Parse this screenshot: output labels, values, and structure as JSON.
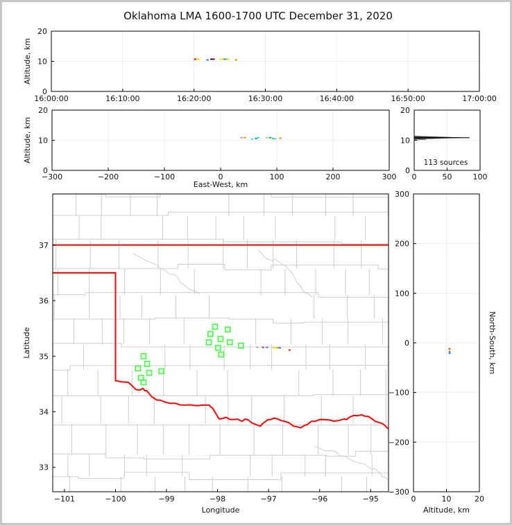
{
  "window": {
    "title": "Oklahoma LMA 1600-1700 UTC December 31, 2020"
  },
  "colors": {
    "background": "#ffffff",
    "frame": "#c6c6c6",
    "axis": "#000000",
    "text": "#111111",
    "grid": "#ececec",
    "county": "#cccccc",
    "state_border": "#ff0000",
    "station": "#3eff3e",
    "histogram": "#222222"
  },
  "chart_data": [
    {
      "id": "time_height",
      "type": "scatter",
      "title": "Oklahoma LMA 1600-1700 UTC December 31, 2020",
      "xlabel": "",
      "ylabel": "Altitude, km",
      "xlim_minutes": [
        0,
        60
      ],
      "ylim": [
        0,
        20
      ],
      "xtick_minutes": [
        0,
        10,
        20,
        30,
        40,
        50,
        60
      ],
      "xtick_labels": [
        "16:00:00",
        "16:10:00",
        "16:20:00",
        "16:30:00",
        "16:40:00",
        "16:50:00",
        "17:00:00"
      ],
      "yticks": [
        0,
        10,
        20
      ],
      "points": [
        {
          "x": 20.15,
          "y": 10.7,
          "c": "#e60000"
        },
        {
          "x": 20.5,
          "y": 10.7,
          "c": "#ffdf00"
        },
        {
          "x": 20.7,
          "y": 10.7,
          "c": "#ffdf00"
        },
        {
          "x": 21.9,
          "y": 10.45,
          "c": "#2b7bde"
        },
        {
          "x": 22.45,
          "y": 10.7,
          "c": "#141414"
        },
        {
          "x": 22.75,
          "y": 10.7,
          "c": "#a00000"
        },
        {
          "x": 23.75,
          "y": 10.7,
          "c": "#ffdf00"
        },
        {
          "x": 24.05,
          "y": 10.7,
          "c": "#ffdf00"
        },
        {
          "x": 24.3,
          "y": 10.7,
          "c": "#2b7bde"
        },
        {
          "x": 24.55,
          "y": 10.7,
          "c": "#57d43c"
        },
        {
          "x": 24.8,
          "y": 10.7,
          "c": "#ffdf00"
        },
        {
          "x": 25.9,
          "y": 10.45,
          "c": "#ff8c00"
        }
      ]
    },
    {
      "id": "ew_height",
      "type": "scatter",
      "xlabel": "East-West, km",
      "ylabel": "Altitude, km",
      "xlim": [
        -300,
        300
      ],
      "ylim": [
        0,
        20
      ],
      "xticks": [
        -300,
        -200,
        -100,
        0,
        100,
        200,
        300
      ],
      "yticks": [
        0,
        10,
        20
      ],
      "points": [
        {
          "x": 37,
          "y": 10.85,
          "c": "#a0a0a0"
        },
        {
          "x": 43,
          "y": 10.85,
          "c": "#ff8c00"
        },
        {
          "x": 56,
          "y": 10.4,
          "c": "#35dfe0"
        },
        {
          "x": 63,
          "y": 10.6,
          "c": "#13a393"
        },
        {
          "x": 67,
          "y": 10.85,
          "c": "#35dfe0"
        },
        {
          "x": 82,
          "y": 10.85,
          "c": "#d9c47e"
        },
        {
          "x": 88,
          "y": 10.85,
          "c": "#13a393"
        },
        {
          "x": 93,
          "y": 10.6,
          "c": "#49c94d"
        },
        {
          "x": 97,
          "y": 10.5,
          "c": "#35dfe0"
        },
        {
          "x": 106,
          "y": 10.7,
          "c": "#ff8c00"
        }
      ]
    },
    {
      "id": "alt_histogram",
      "type": "line",
      "annotation": "113 sources",
      "xlabel": "",
      "ylabel": "",
      "xlim": [
        0,
        100
      ],
      "ylim": [
        0,
        20
      ],
      "xticks": [
        0,
        50,
        100
      ],
      "yticks": [
        0,
        10,
        20
      ],
      "profile": [
        {
          "alt": 10.3,
          "n": 0
        },
        {
          "alt": 10.85,
          "n": 84
        },
        {
          "alt": 11.45,
          "n": 0
        }
      ]
    },
    {
      "id": "map",
      "type": "scatter",
      "xlabel": "Longitude",
      "ylabel": "Latitude",
      "xlim": [
        -101.23,
        -94.65
      ],
      "ylim": [
        32.56,
        37.92
      ],
      "xticks": [
        -101,
        -100,
        -99,
        -98,
        -97,
        -96,
        -95
      ],
      "yticks": [
        33,
        34,
        35,
        36,
        37
      ],
      "stations": [
        [
          -98.05,
          35.53
        ],
        [
          -97.8,
          35.48
        ],
        [
          -98.14,
          35.4
        ],
        [
          -97.94,
          35.31
        ],
        [
          -98.17,
          35.25
        ],
        [
          -97.76,
          35.25
        ],
        [
          -97.99,
          35.15
        ],
        [
          -97.54,
          35.19
        ],
        [
          -97.93,
          35.03
        ],
        [
          -99.45,
          35.0
        ],
        [
          -99.38,
          34.86
        ],
        [
          -99.56,
          34.78
        ],
        [
          -99.34,
          34.7
        ],
        [
          -99.1,
          34.73
        ],
        [
          -99.5,
          34.61
        ],
        [
          -99.45,
          34.53
        ]
      ],
      "points": [
        {
          "x": -97.22,
          "y": 35.16,
          "c": "#a0a0a0"
        },
        {
          "x": -97.11,
          "y": 35.16,
          "c": "#e62222"
        },
        {
          "x": -97.03,
          "y": 35.16,
          "c": "#2b7bde"
        },
        {
          "x": -96.9,
          "y": 35.15,
          "c": "#ffdf00"
        },
        {
          "x": -96.86,
          "y": 35.15,
          "c": "#ffdf00"
        },
        {
          "x": -96.82,
          "y": 35.15,
          "c": "#b8b400"
        },
        {
          "x": -96.78,
          "y": 35.15,
          "c": "#2b7bde"
        },
        {
          "x": -96.59,
          "y": 35.11,
          "c": "#e62222"
        }
      ],
      "state_border": {
        "north_lat": 37.0,
        "panhandle_lat": 36.5,
        "west_lon": -100.0,
        "red_river": [
          [
            -99.99,
            34.56
          ],
          [
            -99.75,
            34.53
          ],
          [
            -99.6,
            34.4
          ],
          [
            -99.46,
            34.42
          ],
          [
            -99.39,
            34.38
          ],
          [
            -99.19,
            34.21
          ],
          [
            -99.05,
            34.18
          ],
          [
            -98.82,
            34.15
          ],
          [
            -98.65,
            34.12
          ],
          [
            -98.41,
            34.11
          ],
          [
            -98.16,
            34.12
          ],
          [
            -98.1,
            34.07
          ],
          [
            -97.97,
            33.87
          ],
          [
            -97.83,
            33.9
          ],
          [
            -97.69,
            33.86
          ],
          [
            -97.53,
            33.83
          ],
          [
            -97.46,
            33.87
          ],
          [
            -97.33,
            33.8
          ],
          [
            -97.16,
            33.74
          ],
          [
            -97.08,
            33.81
          ],
          [
            -96.96,
            33.86
          ],
          [
            -96.82,
            33.87
          ],
          [
            -96.69,
            33.83
          ],
          [
            -96.51,
            33.74
          ],
          [
            -96.37,
            33.71
          ],
          [
            -96.24,
            33.77
          ],
          [
            -96.08,
            33.83
          ],
          [
            -95.9,
            33.86
          ],
          [
            -95.72,
            33.83
          ],
          [
            -95.52,
            33.87
          ],
          [
            -95.42,
            33.9
          ],
          [
            -95.25,
            33.93
          ],
          [
            -95.11,
            33.92
          ],
          [
            -94.97,
            33.87
          ],
          [
            -94.85,
            33.81
          ],
          [
            -94.74,
            33.77
          ],
          [
            -94.63,
            33.67
          ]
        ]
      },
      "rivers": [
        [
          [
            -99.65,
            36.85
          ],
          [
            -99.4,
            36.72
          ],
          [
            -99.1,
            36.58
          ],
          [
            -98.85,
            36.47
          ],
          [
            -98.65,
            36.28
          ],
          [
            -98.35,
            36.12
          ]
        ],
        [
          [
            -97.2,
            36.9
          ],
          [
            -97.0,
            36.75
          ],
          [
            -96.8,
            36.7
          ],
          [
            -96.6,
            36.55
          ],
          [
            -96.45,
            36.35
          ],
          [
            -96.33,
            36.18
          ],
          [
            -96.15,
            36.06
          ]
        ],
        [
          [
            -96.1,
            33.38
          ],
          [
            -95.8,
            33.3
          ],
          [
            -95.5,
            33.2
          ],
          [
            -95.1,
            33.05
          ],
          [
            -94.82,
            32.9
          ],
          [
            -94.66,
            32.78
          ]
        ]
      ]
    },
    {
      "id": "ns_height",
      "type": "scatter",
      "xlabel": "Altitude, km",
      "ylabel": "North-South, km",
      "xlim": [
        0,
        20
      ],
      "ylim": [
        -300,
        300
      ],
      "xticks": [
        0,
        10,
        20
      ],
      "yticks": [
        300,
        200,
        100,
        0,
        -100,
        -200,
        -300
      ],
      "points": [
        {
          "x": 10.9,
          "y": -12,
          "c": "#e62222"
        },
        {
          "x": 11.1,
          "y": -15,
          "c": "#ffdf00"
        },
        {
          "x": 10.9,
          "y": -18,
          "c": "#2b7bde"
        },
        {
          "x": 11.0,
          "y": -21,
          "c": "#2b7bde"
        }
      ]
    }
  ]
}
